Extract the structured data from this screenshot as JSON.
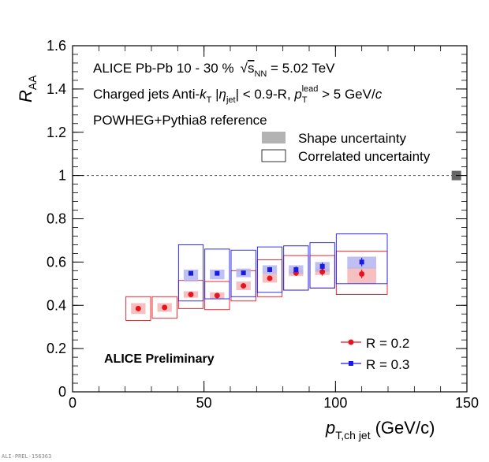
{
  "chart_data": {
    "type": "scatter",
    "xlim": [
      0,
      150
    ],
    "ylim": [
      0,
      1.6
    ],
    "x_ticks": [
      "0",
      "50",
      "100",
      "150"
    ],
    "y_ticks": [
      "0",
      "0.2",
      "0.4",
      "0.6",
      "0.8",
      "1",
      "1.2",
      "1.4",
      "1.6"
    ],
    "xlabel": {
      "base": "p",
      "sub": "T,ch jet",
      "unit": "(GeV/c)"
    },
    "ylabel": {
      "base": "R",
      "sub": "AA"
    },
    "reference_line": 1.0,
    "normalization_box": {
      "x": 146,
      "y": 1.0
    },
    "annotations": {
      "line1_experiment": "ALICE  Pb-Pb  10 - 30 %",
      "line1_energy_sym": "s",
      "line1_energy_sub": "NN",
      "line1_energy_val": " = 5.02 TeV",
      "line2_a": "Charged jets  Anti-",
      "line2_k": "k",
      "line2_ksub": "T",
      "line2_eta_pre": "  |",
      "line2_eta": "η",
      "line2_eta_sub": "jet",
      "line2_eta_post": "| < 0.9-R,  ",
      "line2_p": "p",
      "line2_psub": "T",
      "line2_psup": "lead",
      "line2_tail": " > 5 GeV/",
      "line2_c": "c",
      "line3": "POWHEG+Pythia8 reference",
      "preliminary": "ALICE Preliminary"
    },
    "uncertainty_legend": [
      "Shape uncertainty",
      "Correlated uncertainty"
    ],
    "series": [
      {
        "name": "R = 0.2",
        "color": "#e8141d",
        "fill": "#f5b5b5",
        "marker": "circle",
        "points": [
          {
            "x": 25,
            "y": 0.385,
            "xlo": 20,
            "xhi": 30,
            "shape_lo": 0.36,
            "shape_hi": 0.41,
            "corr_lo": 0.33,
            "corr_hi": 0.44,
            "err": 0.006
          },
          {
            "x": 35,
            "y": 0.39,
            "xlo": 30,
            "xhi": 40,
            "shape_lo": 0.37,
            "shape_hi": 0.41,
            "corr_lo": 0.34,
            "corr_hi": 0.44,
            "err": 0.006
          },
          {
            "x": 45,
            "y": 0.45,
            "xlo": 40,
            "xhi": 50,
            "shape_lo": 0.435,
            "shape_hi": 0.465,
            "corr_lo": 0.385,
            "corr_hi": 0.515,
            "err": 0.008
          },
          {
            "x": 55,
            "y": 0.445,
            "xlo": 50,
            "xhi": 60,
            "shape_lo": 0.43,
            "shape_hi": 0.46,
            "corr_lo": 0.38,
            "corr_hi": 0.51,
            "err": 0.008
          },
          {
            "x": 65,
            "y": 0.49,
            "xlo": 60,
            "xhi": 70,
            "shape_lo": 0.47,
            "shape_hi": 0.51,
            "corr_lo": 0.42,
            "corr_hi": 0.56,
            "err": 0.01
          },
          {
            "x": 75,
            "y": 0.525,
            "xlo": 70,
            "xhi": 80,
            "shape_lo": 0.505,
            "shape_hi": 0.545,
            "corr_lo": 0.44,
            "corr_hi": 0.61,
            "err": 0.012
          },
          {
            "x": 85,
            "y": 0.55,
            "xlo": 80,
            "xhi": 90,
            "shape_lo": 0.535,
            "shape_hi": 0.565,
            "corr_lo": 0.47,
            "corr_hi": 0.63,
            "err": 0.014
          },
          {
            "x": 95,
            "y": 0.555,
            "xlo": 90,
            "xhi": 100,
            "shape_lo": 0.54,
            "shape_hi": 0.57,
            "corr_lo": 0.48,
            "corr_hi": 0.63,
            "err": 0.018
          },
          {
            "x": 110,
            "y": 0.545,
            "xlo": 100,
            "xhi": 120,
            "shape_lo": 0.5,
            "shape_hi": 0.575,
            "corr_lo": 0.45,
            "corr_hi": 0.65,
            "err": 0.02
          }
        ]
      },
      {
        "name": "R = 0.3",
        "color": "#1a1ae6",
        "fill": "#b4b4f0",
        "marker": "square",
        "points": [
          {
            "x": 45,
            "y": 0.548,
            "xlo": 40,
            "xhi": 50,
            "shape_lo": 0.51,
            "shape_hi": 0.565,
            "corr_lo": 0.42,
            "corr_hi": 0.68,
            "err": 0.008
          },
          {
            "x": 55,
            "y": 0.548,
            "xlo": 50,
            "xhi": 60,
            "shape_lo": 0.52,
            "shape_hi": 0.565,
            "corr_lo": 0.43,
            "corr_hi": 0.66,
            "err": 0.008
          },
          {
            "x": 65,
            "y": 0.55,
            "xlo": 60,
            "xhi": 70,
            "shape_lo": 0.53,
            "shape_hi": 0.57,
            "corr_lo": 0.44,
            "corr_hi": 0.655,
            "err": 0.01
          },
          {
            "x": 75,
            "y": 0.565,
            "xlo": 70,
            "xhi": 80,
            "shape_lo": 0.545,
            "shape_hi": 0.585,
            "corr_lo": 0.46,
            "corr_hi": 0.67,
            "err": 0.012
          },
          {
            "x": 85,
            "y": 0.565,
            "xlo": 80,
            "xhi": 90,
            "shape_lo": 0.545,
            "shape_hi": 0.585,
            "corr_lo": 0.47,
            "corr_hi": 0.675,
            "err": 0.014
          },
          {
            "x": 95,
            "y": 0.58,
            "xlo": 90,
            "xhi": 100,
            "shape_lo": 0.555,
            "shape_hi": 0.6,
            "corr_lo": 0.48,
            "corr_hi": 0.69,
            "err": 0.018
          },
          {
            "x": 110,
            "y": 0.6,
            "xlo": 100,
            "xhi": 120,
            "shape_lo": 0.57,
            "shape_hi": 0.625,
            "corr_lo": 0.5,
            "corr_hi": 0.73,
            "err": 0.02
          }
        ]
      }
    ],
    "footer": "ALI-PREL-156363"
  }
}
